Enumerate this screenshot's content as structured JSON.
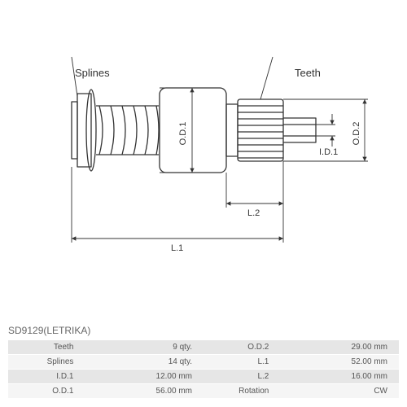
{
  "partCode": "SD9129(LETRIKA)",
  "labels": {
    "splines": "Splines",
    "teeth": "Teeth",
    "od1": "O.D.1",
    "od2": "O.D.2",
    "id1": "I.D.1",
    "l1": "L.1",
    "l2": "L.2"
  },
  "specs": {
    "rows": [
      {
        "k1": "Teeth",
        "v1": "9 qty.",
        "k2": "O.D.2",
        "v2": "29.00 mm"
      },
      {
        "k1": "Splines",
        "v1": "14 qty.",
        "k2": "L.1",
        "v2": "52.00 mm"
      },
      {
        "k1": "I.D.1",
        "v1": "12.00 mm",
        "k2": "L.2",
        "v2": "16.00 mm"
      },
      {
        "k1": "O.D.1",
        "v1": "56.00 mm",
        "k2": "Rotation",
        "v2": "CW"
      }
    ]
  },
  "style": {
    "stroke": "#333333",
    "strokeWidth": 1.3,
    "dimStroke": "#333333",
    "dimWidth": 0.9,
    "font": "11px Arial"
  }
}
